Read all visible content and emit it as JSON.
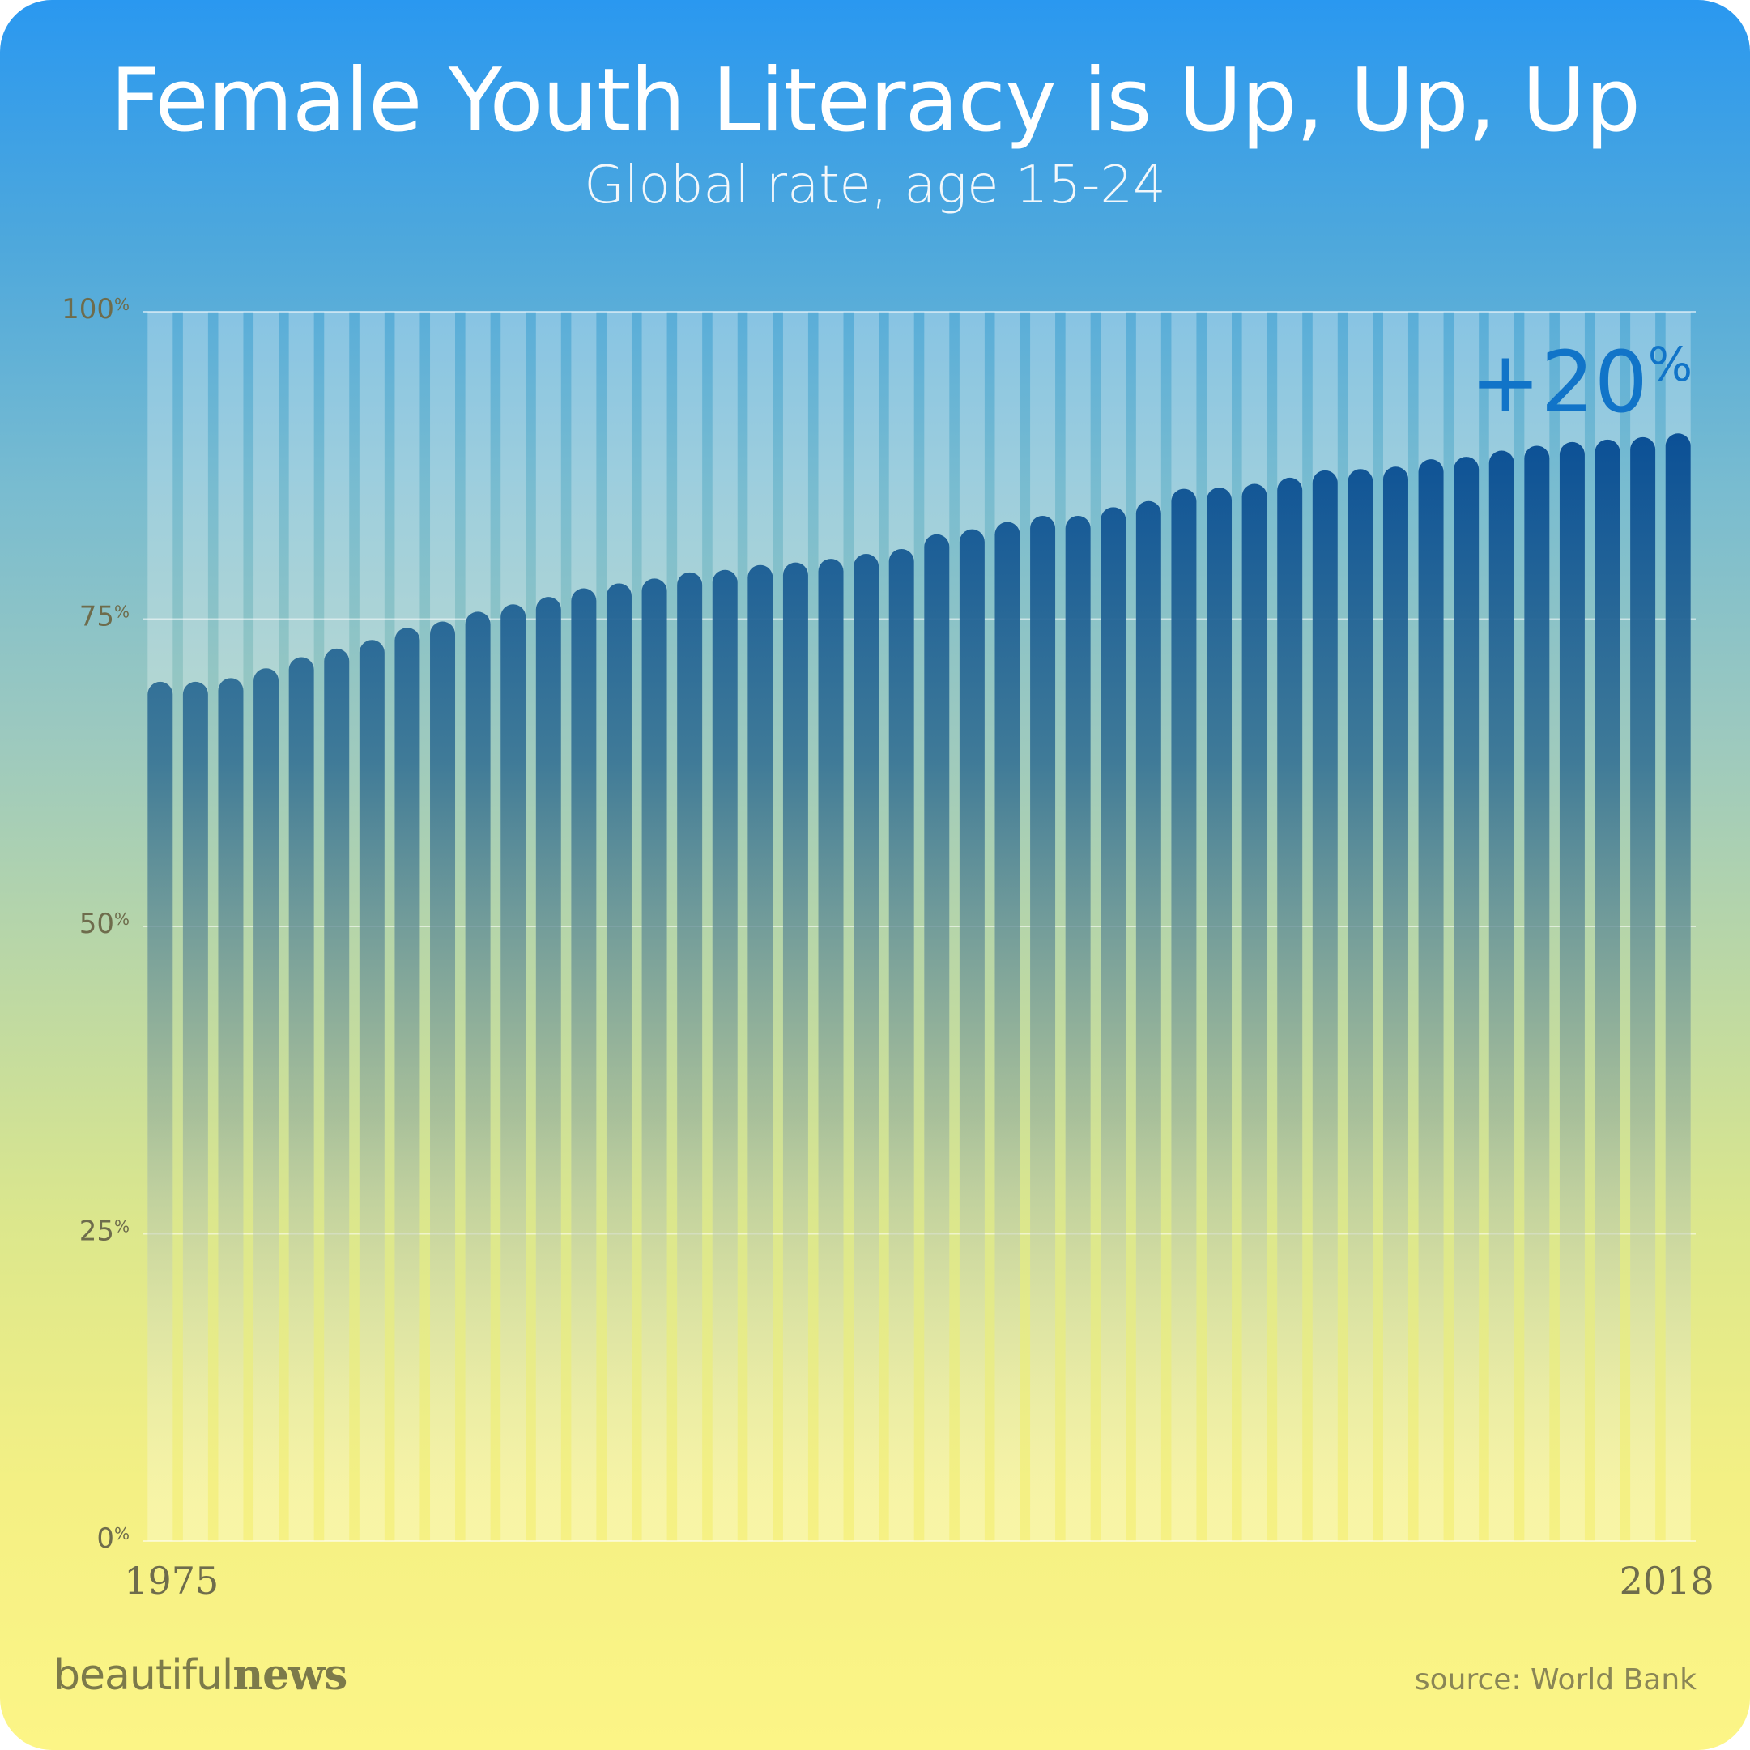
{
  "brand": {
    "part1": "beautiful",
    "part2": "news"
  },
  "source": "source: World Bank",
  "chart_data": {
    "type": "bar",
    "title": "Female Youth Literacy is Up, Up, Up",
    "subtitle": "Global rate, age 15-24",
    "x_start_label": "1975",
    "x_end_label": "2018",
    "y_ticks": [
      "0",
      "25",
      "50",
      "75",
      "100"
    ],
    "y_tick_unit": "%",
    "ylim": [
      0,
      100
    ],
    "grid": true,
    "annotation": {
      "text": "+20",
      "unit": "%",
      "placement": "top-right"
    },
    "categories": [
      "1975",
      "1976",
      "1977",
      "1978",
      "1979",
      "1980",
      "1981",
      "1982",
      "1983",
      "1984",
      "1985",
      "1986",
      "1987",
      "1988",
      "1989",
      "1990",
      "1991",
      "1992",
      "1993",
      "1994",
      "1995",
      "1996",
      "1997",
      "1998",
      "1999",
      "2000",
      "2001",
      "2002",
      "2003",
      "2004",
      "2005",
      "2006",
      "2007",
      "2008",
      "2009",
      "2010",
      "2011",
      "2012",
      "2013",
      "2014",
      "2015",
      "2016",
      "2017",
      "2018"
    ],
    "values": [
      69.9,
      69.9,
      70.2,
      71.0,
      71.9,
      72.6,
      73.3,
      74.3,
      74.8,
      75.6,
      76.2,
      76.8,
      77.5,
      77.9,
      78.3,
      78.8,
      79.0,
      79.4,
      79.6,
      79.9,
      80.3,
      80.7,
      81.9,
      82.3,
      82.9,
      83.4,
      83.4,
      84.1,
      84.6,
      85.6,
      85.7,
      86.0,
      86.5,
      87.1,
      87.2,
      87.4,
      88.0,
      88.2,
      88.7,
      89.1,
      89.4,
      89.6,
      89.8,
      90.1
    ],
    "colors": {
      "bar_top": "#0a4f96",
      "bar_track": "#ffffff",
      "annotation": "#1174c8",
      "axis_text": "#6e6c4c"
    }
  }
}
